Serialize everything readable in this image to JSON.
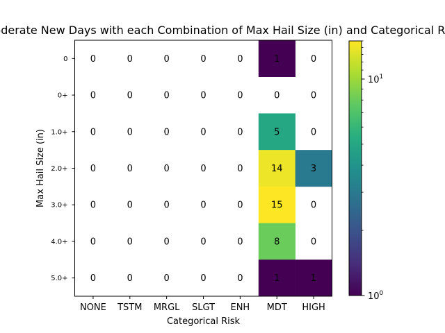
{
  "chart_data": {
    "type": "heatmap",
    "title": "Moderate New Days with each Combination of Max Hail Size (in) and Categorical Risk",
    "xlabel": "Categorical Risk",
    "ylabel": "Max Hail Size (in)",
    "x_categories": [
      "NONE",
      "TSTM",
      "MRGL",
      "SLGT",
      "ENH",
      "MDT",
      "HIGH"
    ],
    "y_categories": [
      "0",
      "0+",
      "1.0+",
      "2.0+",
      "3.0+",
      "4.0+",
      "5.0+"
    ],
    "values": [
      [
        0,
        0,
        0,
        0,
        0,
        1,
        0
      ],
      [
        0,
        0,
        0,
        0,
        0,
        0,
        0
      ],
      [
        0,
        0,
        0,
        0,
        0,
        5,
        0
      ],
      [
        0,
        0,
        0,
        0,
        0,
        14,
        3
      ],
      [
        0,
        0,
        0,
        0,
        0,
        15,
        0
      ],
      [
        0,
        0,
        0,
        0,
        0,
        8,
        0
      ],
      [
        0,
        0,
        0,
        0,
        0,
        1,
        1
      ]
    ],
    "colorbar": {
      "scale": "log",
      "colormap": "viridis",
      "range": [
        1,
        15
      ],
      "ticks": [
        {
          "value": 1,
          "label": "10^0"
        },
        {
          "value": 10,
          "label": "10^1"
        }
      ]
    },
    "zero_cells": "blank (masked)",
    "grid": false
  }
}
